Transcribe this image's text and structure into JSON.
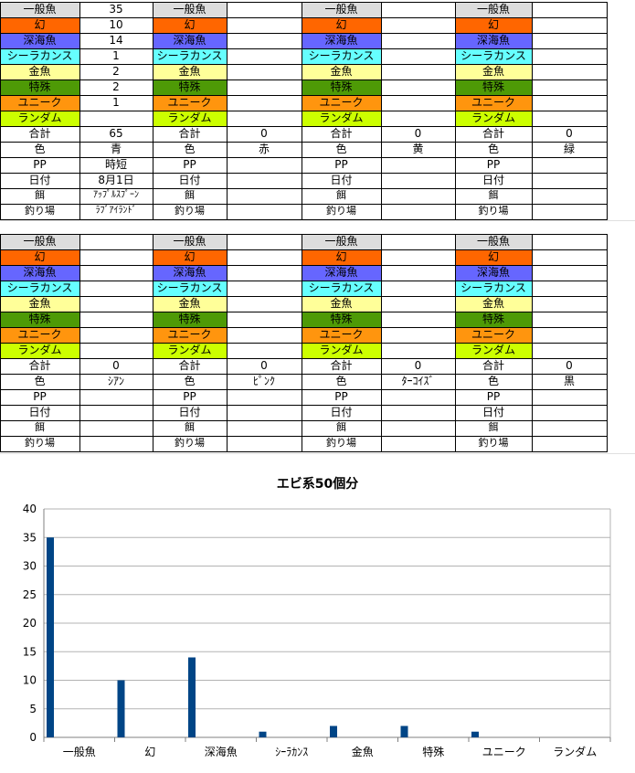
{
  "colors": {
    "一般魚": "#dddddd",
    "幻": "#ff6600",
    "深海魚": "#6666ff",
    "シーラカンス": "#66ffff",
    "金魚": "#ffff99",
    "特殊": "#4e9a06",
    "ユニーク": "#ff950e",
    "ランダム": "#ccff00",
    "bar": "#004586",
    "grid": "#b3b3b3"
  },
  "blocks": [
    {
      "fish": [
        "一般魚",
        "幻",
        "深海魚",
        "シーラカンス",
        "金魚",
        "特殊",
        "ユニーク",
        "ランダム"
      ],
      "counts": [
        "35",
        "10",
        "14",
        "1",
        "2",
        "2",
        "1",
        ""
      ],
      "total_label": "合計",
      "total": "65",
      "color_label": "色",
      "color": "青",
      "pp_label": "PP",
      "pp": "時短",
      "date_label": "日付",
      "date": "8月1日",
      "bait_label": "餌",
      "bait": "ｱｯﾌﾟﾙｽﾌﾟｰﾝ",
      "spot_label": "釣り場",
      "spot": "ﾗﾌﾞｱｲﾗﾝﾄﾞ"
    },
    {
      "fish": [
        "一般魚",
        "幻",
        "深海魚",
        "シーラカンス",
        "金魚",
        "特殊",
        "ユニーク",
        "ランダム"
      ],
      "counts": [
        "",
        "",
        "",
        "",
        "",
        "",
        "",
        ""
      ],
      "total_label": "合計",
      "total": "0",
      "color_label": "色",
      "color": "赤",
      "pp_label": "PP",
      "pp": "",
      "date_label": "日付",
      "date": "",
      "bait_label": "餌",
      "bait": "",
      "spot_label": "釣り場",
      "spot": ""
    },
    {
      "fish": [
        "一般魚",
        "幻",
        "深海魚",
        "シーラカンス",
        "金魚",
        "特殊",
        "ユニーク",
        "ランダム"
      ],
      "counts": [
        "",
        "",
        "",
        "",
        "",
        "",
        "",
        ""
      ],
      "total_label": "合計",
      "total": "0",
      "color_label": "色",
      "color": "黄",
      "pp_label": "PP",
      "pp": "",
      "date_label": "日付",
      "date": "",
      "bait_label": "餌",
      "bait": "",
      "spot_label": "釣り場",
      "spot": ""
    },
    {
      "fish": [
        "一般魚",
        "幻",
        "深海魚",
        "シーラカンス",
        "金魚",
        "特殊",
        "ユニーク",
        "ランダム"
      ],
      "counts": [
        "",
        "",
        "",
        "",
        "",
        "",
        "",
        ""
      ],
      "total_label": "合計",
      "total": "0",
      "color_label": "色",
      "color": "緑",
      "pp_label": "PP",
      "pp": "",
      "date_label": "日付",
      "date": "",
      "bait_label": "餌",
      "bait": "",
      "spot_label": "釣り場",
      "spot": ""
    },
    {
      "fish": [
        "一般魚",
        "幻",
        "深海魚",
        "シーラカンス",
        "金魚",
        "特殊",
        "ユニーク",
        "ランダム"
      ],
      "counts": [
        "",
        "",
        "",
        "",
        "",
        "",
        "",
        ""
      ],
      "total_label": "合計",
      "total": "0",
      "color_label": "色",
      "color": "ｼｱﾝ",
      "pp_label": "PP",
      "pp": "",
      "date_label": "日付",
      "date": "",
      "bait_label": "餌",
      "bait": "",
      "spot_label": "釣り場",
      "spot": ""
    },
    {
      "fish": [
        "一般魚",
        "幻",
        "深海魚",
        "シーラカンス",
        "金魚",
        "特殊",
        "ユニーク",
        "ランダム"
      ],
      "counts": [
        "",
        "",
        "",
        "",
        "",
        "",
        "",
        ""
      ],
      "total_label": "合計",
      "total": "0",
      "color_label": "色",
      "color": "ﾋﾟﾝｸ",
      "pp_label": "PP",
      "pp": "",
      "date_label": "日付",
      "date": "",
      "bait_label": "餌",
      "bait": "",
      "spot_label": "釣り場",
      "spot": ""
    },
    {
      "fish": [
        "一般魚",
        "幻",
        "深海魚",
        "シーラカンス",
        "金魚",
        "特殊",
        "ユニーク",
        "ランダム"
      ],
      "counts": [
        "",
        "",
        "",
        "",
        "",
        "",
        "",
        ""
      ],
      "total_label": "合計",
      "total": "0",
      "color_label": "色",
      "color": "ﾀｰｺｲｽﾞ",
      "pp_label": "PP",
      "pp": "",
      "date_label": "日付",
      "date": "",
      "bait_label": "餌",
      "bait": "",
      "spot_label": "釣り場",
      "spot": ""
    },
    {
      "fish": [
        "一般魚",
        "幻",
        "深海魚",
        "シーラカンス",
        "金魚",
        "特殊",
        "ユニーク",
        "ランダム"
      ],
      "counts": [
        "",
        "",
        "",
        "",
        "",
        "",
        "",
        ""
      ],
      "total_label": "合計",
      "total": "0",
      "color_label": "色",
      "color": "黒",
      "pp_label": "PP",
      "pp": "",
      "date_label": "日付",
      "date": "",
      "bait_label": "餌",
      "bait": "",
      "spot_label": "釣り場",
      "spot": ""
    }
  ],
  "chart_data": {
    "type": "bar",
    "title": "エビ系50個分",
    "categories": [
      "一般魚",
      "幻",
      "深海魚",
      "シーラカンス",
      "金魚",
      "特殊",
      "ユニーク",
      "ランダム"
    ],
    "category_labels": [
      "一般魚",
      "幻",
      "深海魚",
      "ｼｰﾗｶﾝｽ",
      "金魚",
      "特殊",
      "ユニーク",
      "ランダム"
    ],
    "values": [
      35,
      10,
      14,
      1,
      2,
      2,
      1,
      0
    ],
    "ylim": [
      0,
      40
    ],
    "yticks": [
      0,
      5,
      10,
      15,
      20,
      25,
      30,
      35,
      40
    ],
    "grid": true,
    "legend": "none"
  }
}
